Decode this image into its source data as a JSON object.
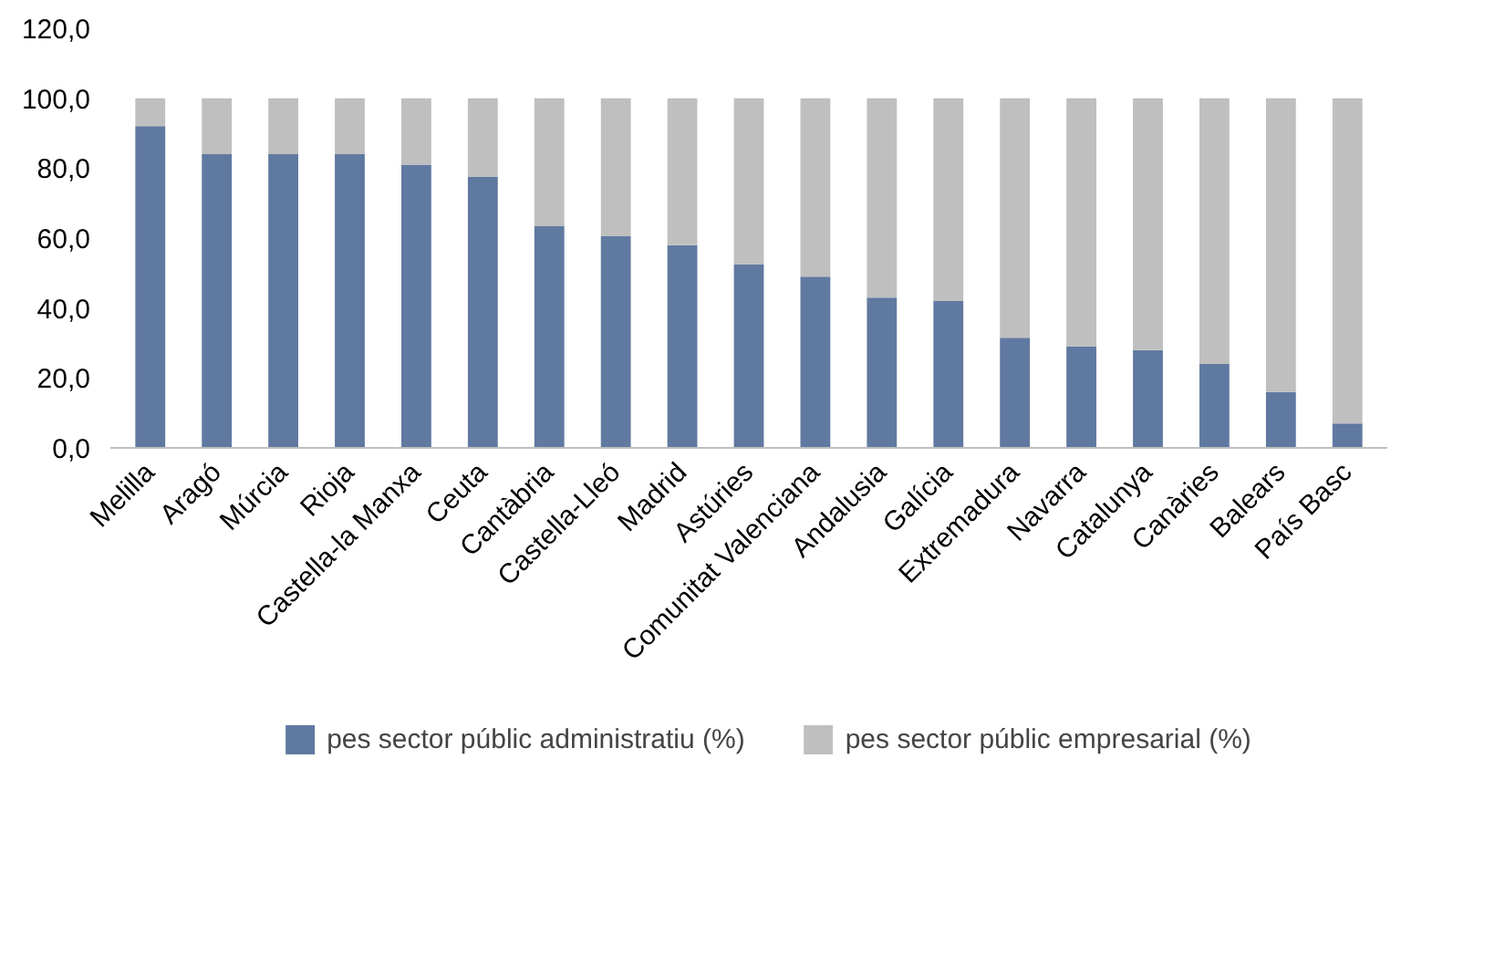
{
  "chart_data": {
    "type": "bar",
    "stacked": true,
    "categories": [
      "Melilla",
      "Aragó",
      "Múrcia",
      "Rioja",
      "Castella-la Manxa",
      "Ceuta",
      "Cantàbria",
      "Castella-Lleó",
      "Madrid",
      "Astúries",
      "Comunitat Valenciana",
      "Andalusia",
      "Galícia",
      "Extremadura",
      "Navarra",
      "Catalunya",
      "Canàries",
      "Balears",
      "País Basc"
    ],
    "series": [
      {
        "name": "pes sector públic administratiu (%)",
        "color": "#6079a0",
        "values": [
          92,
          84,
          84,
          84,
          81,
          77.5,
          63.5,
          60.5,
          58,
          52.5,
          49,
          43,
          42,
          31.5,
          29,
          28,
          24,
          16,
          7
        ]
      },
      {
        "name": "pes sector públic empresarial (%)",
        "color": "#bfbfbf",
        "values": [
          8,
          16,
          16,
          16,
          19,
          22.5,
          36.5,
          39.5,
          42,
          47.5,
          51,
          57,
          58,
          68.5,
          71,
          72,
          76,
          84,
          93
        ]
      }
    ],
    "ylim": [
      0,
      120
    ],
    "yticks": [
      {
        "value": 0,
        "label": "0,0"
      },
      {
        "value": 20,
        "label": "20,0"
      },
      {
        "value": 40,
        "label": "40,0"
      },
      {
        "value": 60,
        "label": "60,0"
      },
      {
        "value": 80,
        "label": "80,0"
      },
      {
        "value": 100,
        "label": "100,0"
      },
      {
        "value": 120,
        "label": "120,0"
      }
    ],
    "grid": false,
    "legend": "bottom"
  }
}
